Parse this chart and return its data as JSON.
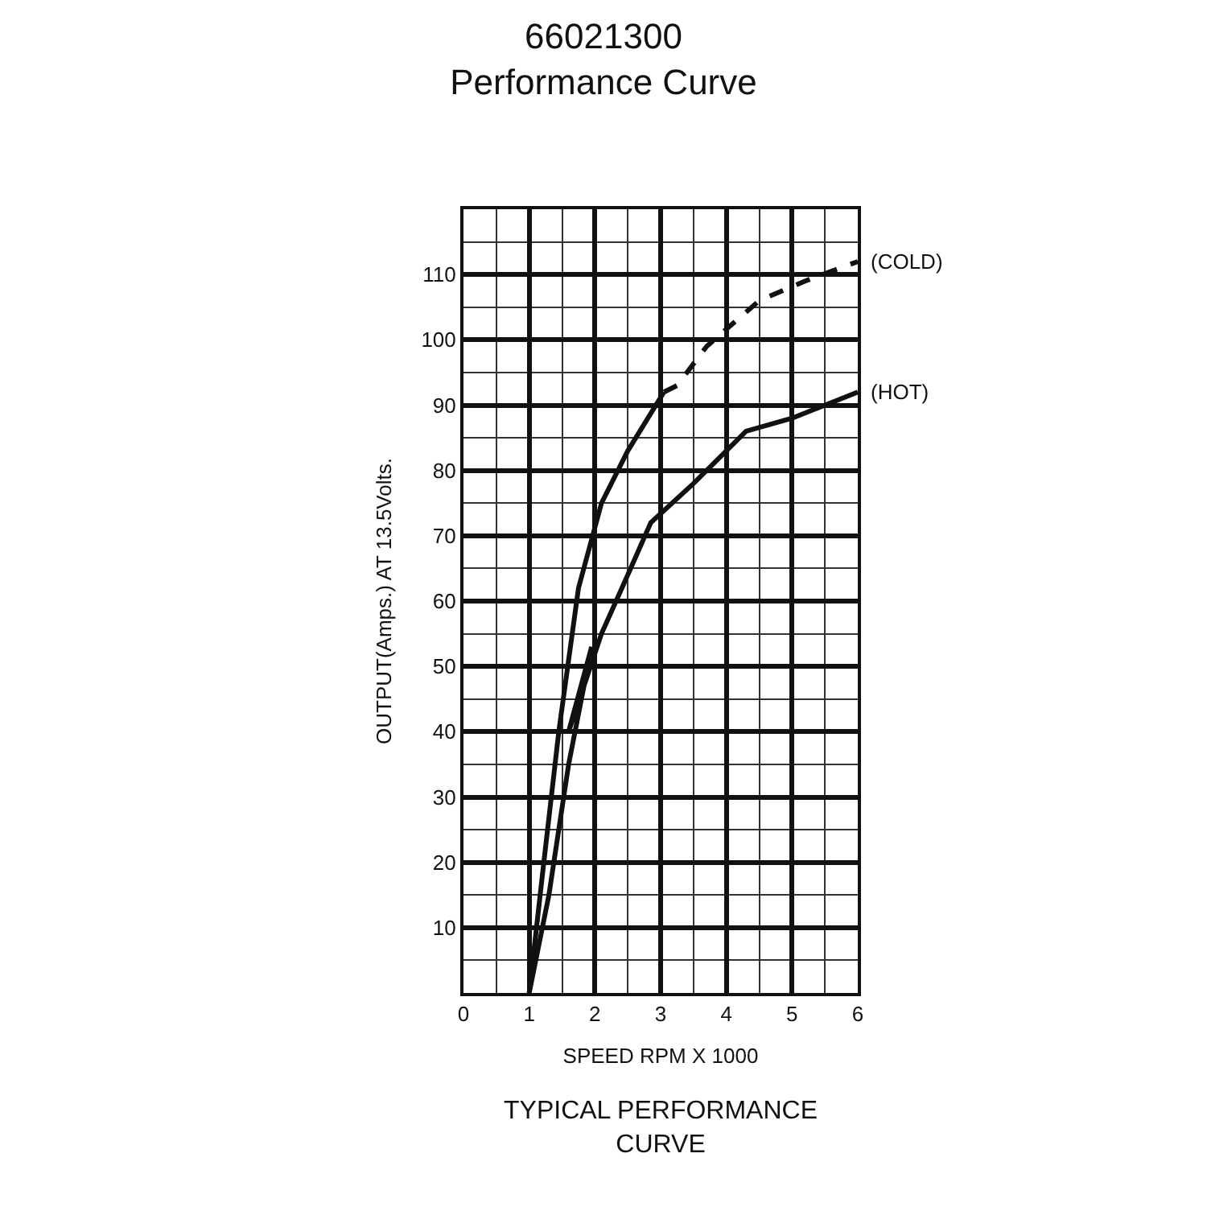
{
  "chart_data": {
    "type": "line",
    "title": "66021300\nPerformance Curve",
    "xlabel": "SPEED RPM X 1000",
    "ylabel": "OUTPUT(Amps.) AT 13.5Volts.",
    "annotations": [
      "TYPICAL PERFORMANCE\nCURVE"
    ],
    "xlim": [
      0,
      6
    ],
    "xticks": [
      0,
      1,
      2,
      3,
      4,
      5,
      6
    ],
    "ylim": [
      0,
      120
    ],
    "yticks": [
      10,
      20,
      30,
      40,
      50,
      60,
      70,
      80,
      90,
      100,
      110
    ],
    "grid": true,
    "legend": false,
    "marker": "none",
    "series": [
      {
        "color": "#111111",
        "line_style": "solid",
        "x": [
          1,
          1.2,
          1.45,
          1.75,
          2.1,
          2.5,
          3.05
        ],
        "values": [
          0,
          18,
          40,
          62,
          75,
          83,
          92
        ]
      },
      {
        "name": "(COLD)",
        "color": "#111111",
        "line_style": "dashed",
        "x": [
          3.05,
          3.25,
          3.7,
          4.5,
          5.2,
          6
        ],
        "values": [
          92,
          93,
          99,
          106,
          109,
          112
        ]
      },
      {
        "name": "(HOT)",
        "color": "#111111",
        "line_style": "solid",
        "x": [
          1,
          1.3,
          1.6,
          1.95,
          1.6,
          2.1,
          2.5,
          2.85,
          3.5,
          4.3,
          5,
          6
        ],
        "values": [
          0,
          15,
          35,
          53,
          40,
          55,
          64,
          72,
          78,
          86,
          88,
          92
        ]
      }
    ]
  }
}
